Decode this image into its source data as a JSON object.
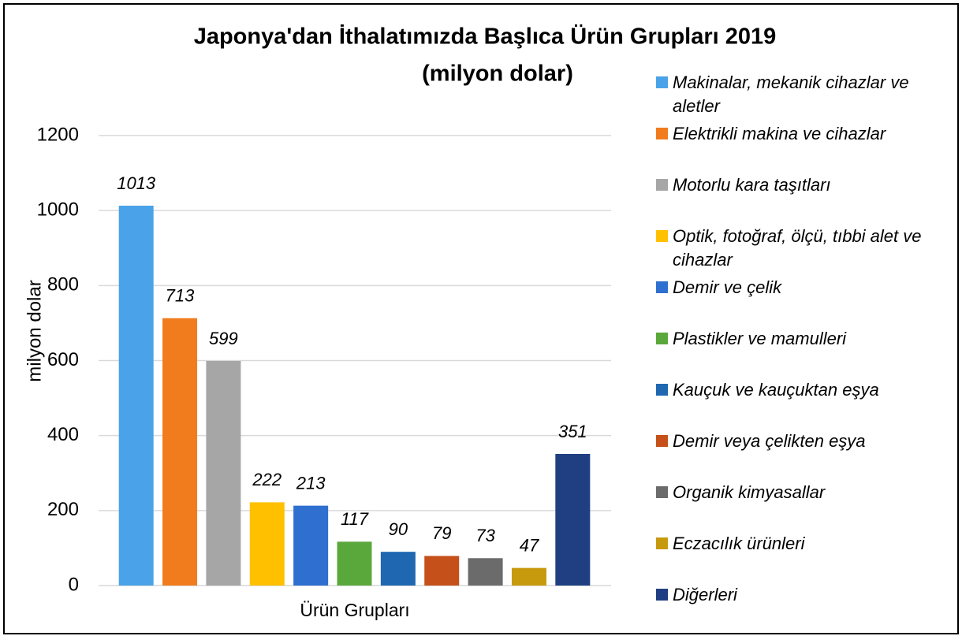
{
  "chart_data": {
    "type": "bar",
    "title": "Japonya'dan  İthalatımızda Başlıca Ürün Grupları 2019",
    "subtitle": "(milyon dolar)",
    "y_label": "milyon dolar",
    "x_label": "Ürün Grupları",
    "categories": [
      "Makinalar, mekanik cihazlar ve aletler",
      "Elektrikli makina ve cihazlar",
      "Motorlu kara taşıtları",
      "Optik, fotoğraf, ölçü, tıbbi alet ve cihazlar",
      "Demir ve çelik",
      "Plastikler ve mamulleri",
      "Kauçuk ve kauçuktan eşya",
      "Demir veya çelikten eşya",
      "Organik kimyasallar",
      "Eczacılık ürünleri",
      "Diğerleri"
    ],
    "values": [
      1013,
      713,
      599,
      222,
      213,
      117,
      90,
      79,
      73,
      47,
      351
    ],
    "colors": [
      "#4aa3e8",
      "#f07c1e",
      "#a6a6a6",
      "#ffc000",
      "#2e6fd0",
      "#5aa83c",
      "#1f67b0",
      "#c5501a",
      "#6b6b6b",
      "#c79a0e",
      "#1f3f82"
    ],
    "ylim": [
      0,
      1200
    ],
    "yticks": [
      0,
      200,
      400,
      600,
      800,
      1000,
      1200
    ],
    "grid": true,
    "legend": "right"
  }
}
